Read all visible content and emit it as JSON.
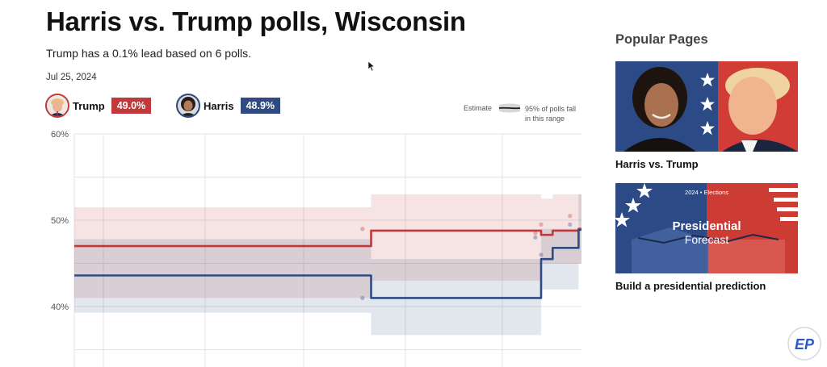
{
  "page": {
    "title": "Harris vs. Trump polls, Wisconsin",
    "subtitle": "Trump has a 0.1% lead based on 6 polls.",
    "date": "Jul 25, 2024"
  },
  "candidates": {
    "trump": {
      "name": "Trump",
      "value": "49.0%",
      "color": "#c0393b"
    },
    "harris": {
      "name": "Harris",
      "value": "48.9%",
      "color": "#2f4b82"
    }
  },
  "legend": {
    "estimate": "Estimate",
    "range_line1": "95% of polls fall",
    "range_line2": "in this range"
  },
  "chart_data": {
    "type": "line",
    "title": "Harris vs. Trump polls, Wisconsin",
    "xlabel": "",
    "ylabel": "",
    "ylim": [
      33,
      60
    ],
    "y_ticks": [
      {
        "value": 60,
        "label": "60%"
      },
      {
        "value": 50,
        "label": "50%"
      },
      {
        "value": 40,
        "label": "40%"
      }
    ],
    "x": [
      0,
      15,
      40,
      70,
      100,
      103,
      113,
      118,
      160,
      161,
      162,
      163,
      166,
      168,
      170,
      172,
      175,
      176
    ],
    "xlim": [
      0,
      176
    ],
    "grid": true,
    "series": [
      {
        "name": "Trump",
        "color": "#c0393b",
        "values": [
          47,
          47,
          47,
          47,
          47,
          48.8,
          48.8,
          48.8,
          48.8,
          48.8,
          48.3,
          48.3,
          48.8,
          48.8,
          48.8,
          48.8,
          49,
          49
        ],
        "band_low": [
          41,
          41,
          41,
          41,
          41,
          43,
          43,
          43,
          43,
          43,
          45,
          45,
          45,
          45,
          45,
          45,
          45,
          45
        ],
        "band_high": [
          51.5,
          51.5,
          51.5,
          51.5,
          51.5,
          53,
          53,
          53,
          53,
          53,
          52.5,
          52.5,
          53,
          53,
          53,
          53,
          53,
          53
        ]
      },
      {
        "name": "Harris",
        "color": "#2f4b82",
        "values": [
          43.6,
          43.6,
          43.6,
          43.6,
          43.6,
          41,
          41,
          41,
          41,
          41,
          45.5,
          45.5,
          46.8,
          46.8,
          46.8,
          46.8,
          48.9,
          48.9
        ],
        "band_low": [
          39.3,
          39.3,
          39.3,
          39.3,
          39.3,
          36.7,
          36.7,
          36.7,
          36.7,
          36.7,
          42,
          42,
          42,
          42,
          42,
          42,
          45,
          45
        ],
        "band_high": [
          47.8,
          47.8,
          47.8,
          47.8,
          47.8,
          45.5,
          45.5,
          45.5,
          45.5,
          45.5,
          49,
          49,
          49,
          49,
          49,
          49,
          53,
          53
        ]
      }
    ],
    "polls": [
      {
        "x": 100,
        "trump": 49,
        "harris": 41
      },
      {
        "x": 160,
        "trump": 48.5,
        "harris": 48
      },
      {
        "x": 162,
        "trump": 49.5,
        "harris": 46
      },
      {
        "x": 172,
        "trump": 50.5,
        "harris": 49.5
      }
    ]
  },
  "sidebar": {
    "title": "Popular Pages",
    "cards": [
      {
        "label": "Harris vs. Trump"
      },
      {
        "label": "Build a presidential prediction",
        "image_tag": "2024 • Elections",
        "image_title": "Presidential",
        "image_sub": "Forecast"
      }
    ]
  },
  "logo": {
    "text": "EP"
  }
}
